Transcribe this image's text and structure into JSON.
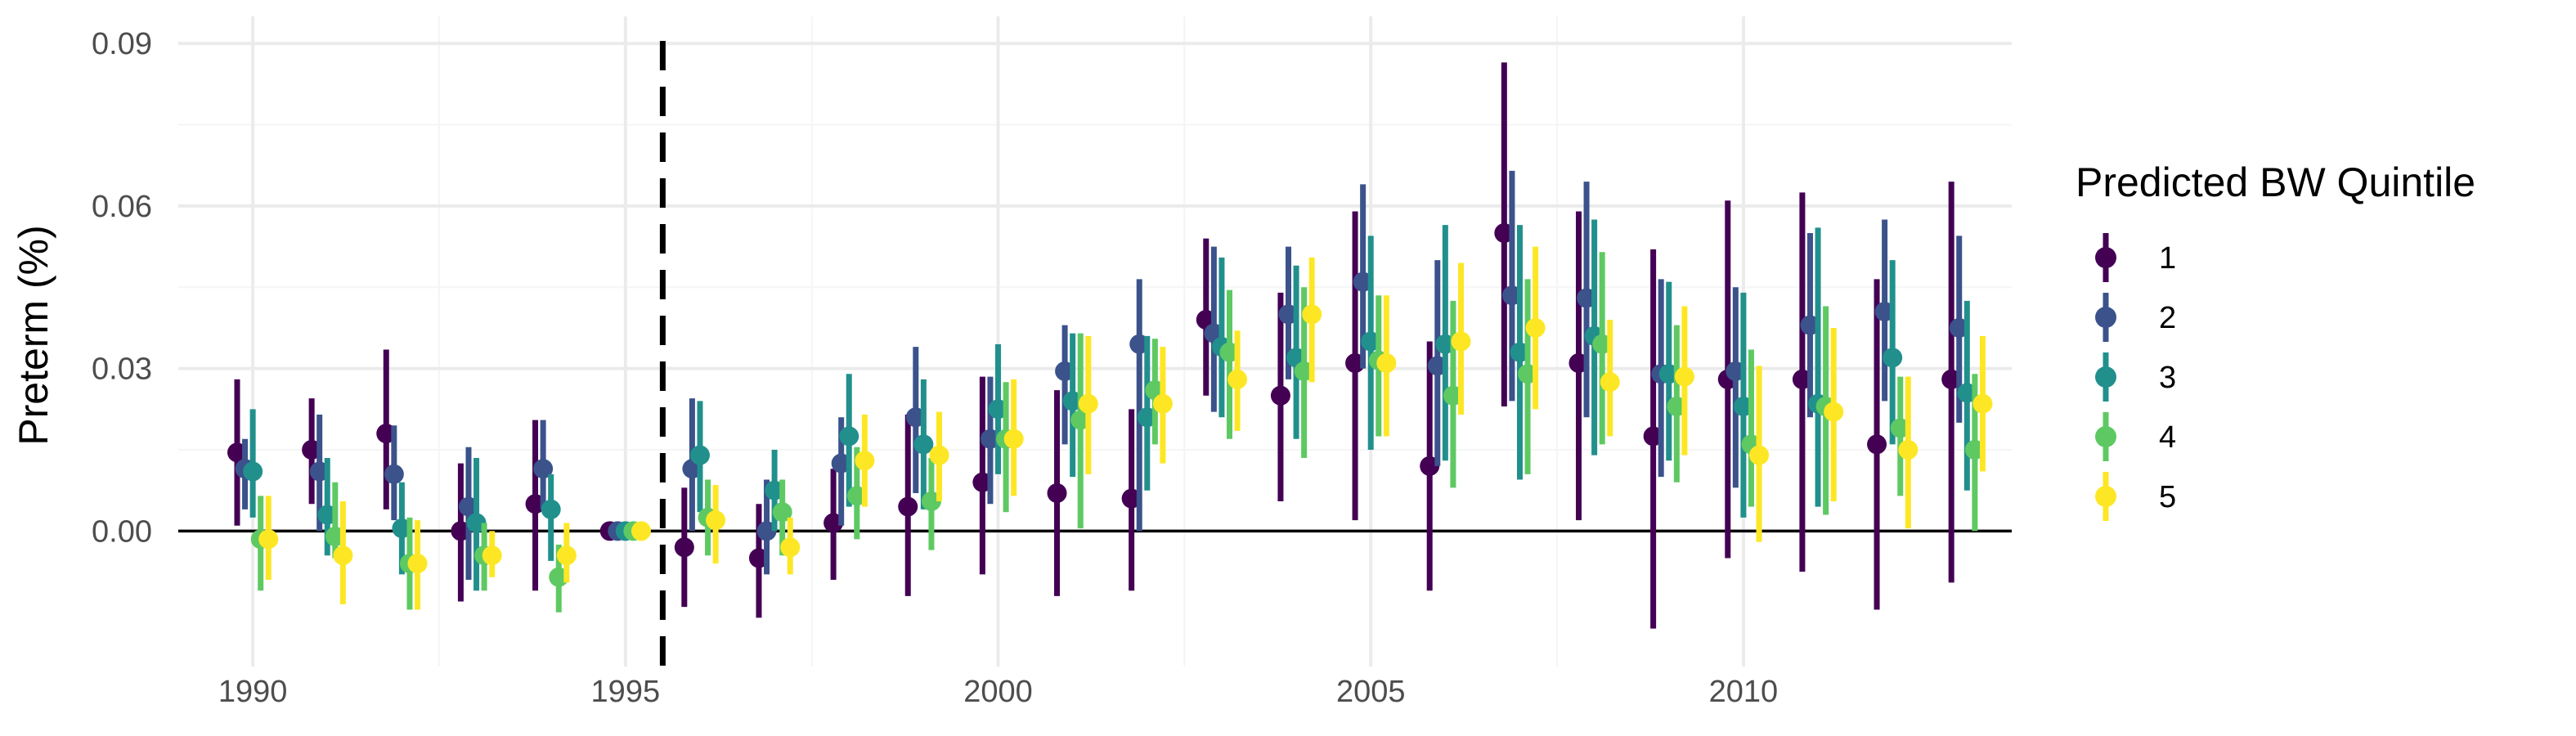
{
  "chart_data": {
    "type": "scatter",
    "subtype": "point-range (dodged, with error bars)",
    "title": "",
    "xlabel": "",
    "ylabel": "Preterm (%)",
    "xlim": [
      1989.0,
      2013.6
    ],
    "ylim": [
      -0.025,
      0.095
    ],
    "x_ticks": [
      1990,
      1995,
      2000,
      2005,
      2010
    ],
    "x_tick_labels": [
      "1990",
      "1995",
      "2000",
      "2005",
      "2010"
    ],
    "y_ticks": [
      0.0,
      0.03,
      0.06,
      0.09
    ],
    "y_tick_labels": [
      "0.00",
      "0.03",
      "0.06",
      "0.09"
    ],
    "grid": true,
    "reference_hline": 0,
    "reference_vline": {
      "x": 1995.5,
      "style": "dashed"
    },
    "legend": {
      "title": "Predicted BW Quintile",
      "placement": "right",
      "entries": [
        "1",
        "2",
        "3",
        "4",
        "5"
      ]
    },
    "colors": [
      "#440154",
      "#3b528b",
      "#21908c",
      "#5ec962",
      "#fde725"
    ],
    "years": [
      1990,
      1991,
      1992,
      1993,
      1994,
      1995,
      1996,
      1997,
      1998,
      1999,
      2000,
      2001,
      2002,
      2003,
      2004,
      2005,
      2006,
      2007,
      2008,
      2009,
      2010,
      2011,
      2012,
      2013
    ],
    "series": [
      {
        "name": "1",
        "estimate": [
          0.0145,
          0.015,
          0.018,
          0.0,
          0.005,
          0.0,
          -0.003,
          -0.005,
          0.0015,
          0.0045,
          0.009,
          0.007,
          0.006,
          0.039,
          0.025,
          0.031,
          0.012,
          0.055,
          0.031,
          0.0175,
          0.028,
          0.028,
          0.016,
          0.028
        ],
        "lower": [
          0.001,
          0.005,
          0.004,
          -0.013,
          -0.011,
          0.0,
          -0.014,
          -0.016,
          -0.009,
          -0.012,
          -0.008,
          -0.012,
          -0.011,
          0.025,
          0.0055,
          0.002,
          -0.011,
          0.023,
          0.002,
          -0.018,
          -0.005,
          -0.0075,
          -0.0145,
          -0.0095
        ],
        "upper": [
          0.028,
          0.0245,
          0.0335,
          0.0125,
          0.0205,
          0.0,
          0.008,
          0.005,
          0.0115,
          0.0215,
          0.0285,
          0.026,
          0.0225,
          0.054,
          0.044,
          0.059,
          0.035,
          0.0865,
          0.059,
          0.052,
          0.061,
          0.0625,
          0.0465,
          0.0645
        ]
      },
      {
        "name": "2",
        "estimate": [
          0.0115,
          0.011,
          0.0105,
          0.0045,
          0.0115,
          0.0,
          0.0115,
          0.0,
          0.0125,
          0.021,
          0.017,
          0.0295,
          0.0345,
          0.0365,
          0.04,
          0.046,
          0.0305,
          0.0435,
          0.043,
          0.029,
          0.0295,
          0.038,
          0.0405,
          0.0375
        ],
        "lower": [
          0.004,
          0.0,
          0.002,
          -0.009,
          0.004,
          0.0,
          0.0,
          -0.008,
          0.001,
          0.007,
          0.005,
          0.016,
          0.0,
          0.022,
          0.028,
          0.03,
          0.012,
          0.024,
          0.021,
          0.01,
          0.008,
          0.021,
          0.024,
          0.02
        ],
        "upper": [
          0.017,
          0.0215,
          0.0195,
          0.0155,
          0.0205,
          0.0,
          0.0245,
          0.0095,
          0.021,
          0.034,
          0.0285,
          0.038,
          0.0465,
          0.0525,
          0.0525,
          0.064,
          0.05,
          0.0665,
          0.0645,
          0.0465,
          0.045,
          0.055,
          0.0575,
          0.0545
        ]
      },
      {
        "name": "3",
        "estimate": [
          0.011,
          0.003,
          0.0005,
          0.0015,
          0.004,
          0.0,
          0.014,
          0.0075,
          0.0175,
          0.016,
          0.0225,
          0.024,
          0.021,
          0.034,
          0.032,
          0.035,
          0.0345,
          0.033,
          0.036,
          0.029,
          0.023,
          0.0235,
          0.032,
          0.0255
        ],
        "lower": [
          0.0025,
          -0.0045,
          -0.008,
          -0.011,
          -0.0055,
          0.0,
          0.0035,
          0.0,
          0.0045,
          0.004,
          0.0105,
          0.01,
          0.0075,
          0.021,
          0.017,
          0.015,
          0.013,
          0.0095,
          0.014,
          0.013,
          0.0025,
          0.0045,
          0.016,
          0.0075
        ],
        "upper": [
          0.0225,
          0.0135,
          0.009,
          0.0135,
          0.0105,
          0.0,
          0.024,
          0.015,
          0.029,
          0.028,
          0.0345,
          0.0365,
          0.036,
          0.0505,
          0.049,
          0.0545,
          0.0565,
          0.0565,
          0.0575,
          0.046,
          0.044,
          0.056,
          0.05,
          0.0425
        ]
      },
      {
        "name": "4",
        "estimate": [
          -0.0015,
          -0.001,
          -0.006,
          -0.0045,
          -0.0085,
          0.0,
          0.0025,
          0.0035,
          0.0065,
          0.0055,
          0.017,
          0.0205,
          0.026,
          0.033,
          0.0295,
          0.0315,
          0.025,
          0.029,
          0.0345,
          0.023,
          0.016,
          0.023,
          0.019,
          0.015
        ],
        "lower": [
          -0.011,
          -0.005,
          -0.0145,
          -0.011,
          -0.015,
          0.0,
          -0.0045,
          -0.0045,
          -0.0015,
          -0.0035,
          0.0035,
          0.0005,
          0.016,
          0.017,
          0.0135,
          0.0175,
          0.008,
          0.0105,
          0.016,
          0.009,
          0.0045,
          0.003,
          0.0065,
          0.0
        ],
        "upper": [
          0.0065,
          0.009,
          0.0025,
          0.0015,
          -0.0025,
          0.0,
          0.0095,
          0.0095,
          0.0155,
          0.0135,
          0.0275,
          0.0365,
          0.0355,
          0.0445,
          0.045,
          0.0435,
          0.0425,
          0.0465,
          0.0515,
          0.038,
          0.0335,
          0.0415,
          0.0285,
          0.029
        ]
      },
      {
        "name": "5",
        "estimate": [
          -0.0015,
          -0.0045,
          -0.006,
          -0.0045,
          -0.0045,
          0.0,
          0.002,
          -0.003,
          0.013,
          0.014,
          0.017,
          0.0235,
          0.0235,
          0.028,
          0.04,
          0.031,
          0.035,
          0.0375,
          0.0275,
          0.0285,
          0.014,
          0.022,
          0.015,
          0.0235
        ],
        "lower": [
          -0.009,
          -0.0135,
          -0.0145,
          -0.0085,
          -0.0095,
          0.0,
          -0.006,
          -0.008,
          0.0045,
          0.0055,
          0.0065,
          0.0105,
          0.0125,
          0.0185,
          0.0275,
          0.0175,
          0.0215,
          0.0225,
          0.0175,
          0.014,
          -0.002,
          0.0055,
          0.0005,
          0.011
        ],
        "upper": [
          0.0065,
          0.0055,
          0.002,
          0.0,
          0.0015,
          0.0,
          0.0085,
          0.0025,
          0.0215,
          0.022,
          0.028,
          0.036,
          0.034,
          0.037,
          0.0505,
          0.0435,
          0.0495,
          0.0525,
          0.039,
          0.0415,
          0.0305,
          0.0375,
          0.0285,
          0.036
        ]
      }
    ]
  }
}
